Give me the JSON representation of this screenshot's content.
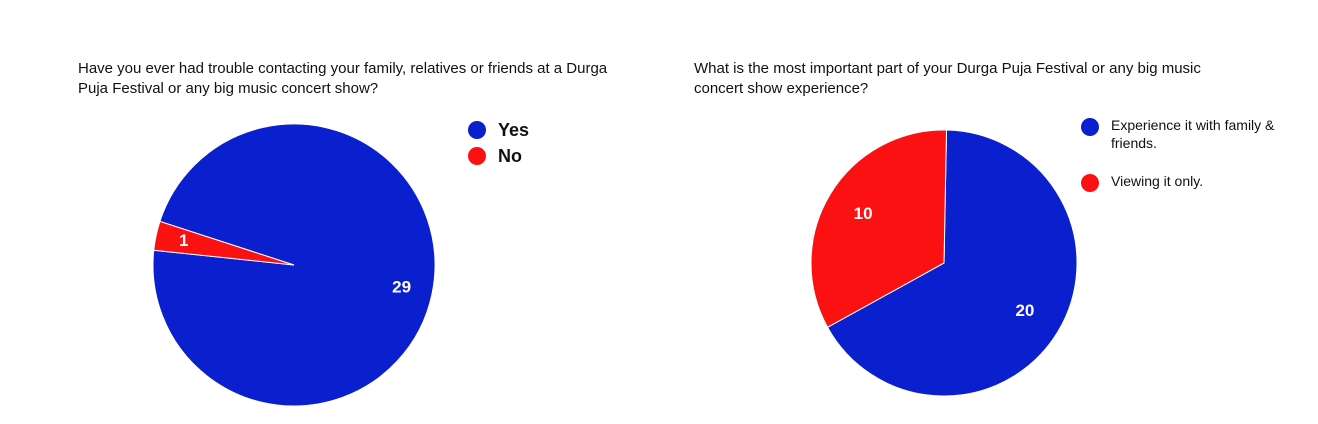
{
  "chart_data": [
    {
      "type": "pie",
      "title": "Have you ever had trouble contacting your family, relatives or friends at a Durga Puja Festival or any big music concert show?",
      "categories": [
        "Yes",
        "No"
      ],
      "values": [
        29,
        1
      ],
      "colors": [
        "#0a1fce",
        "#fb1111"
      ],
      "legend": "right"
    },
    {
      "type": "pie",
      "title": "What is the most important part of your Durga Puja Festival or any big music concert show experience?",
      "categories": [
        "Experience it with family & friends.",
        "Viewing it only."
      ],
      "values": [
        20,
        10
      ],
      "colors": [
        "#0a1fce",
        "#fb1111"
      ],
      "legend": "right"
    }
  ]
}
